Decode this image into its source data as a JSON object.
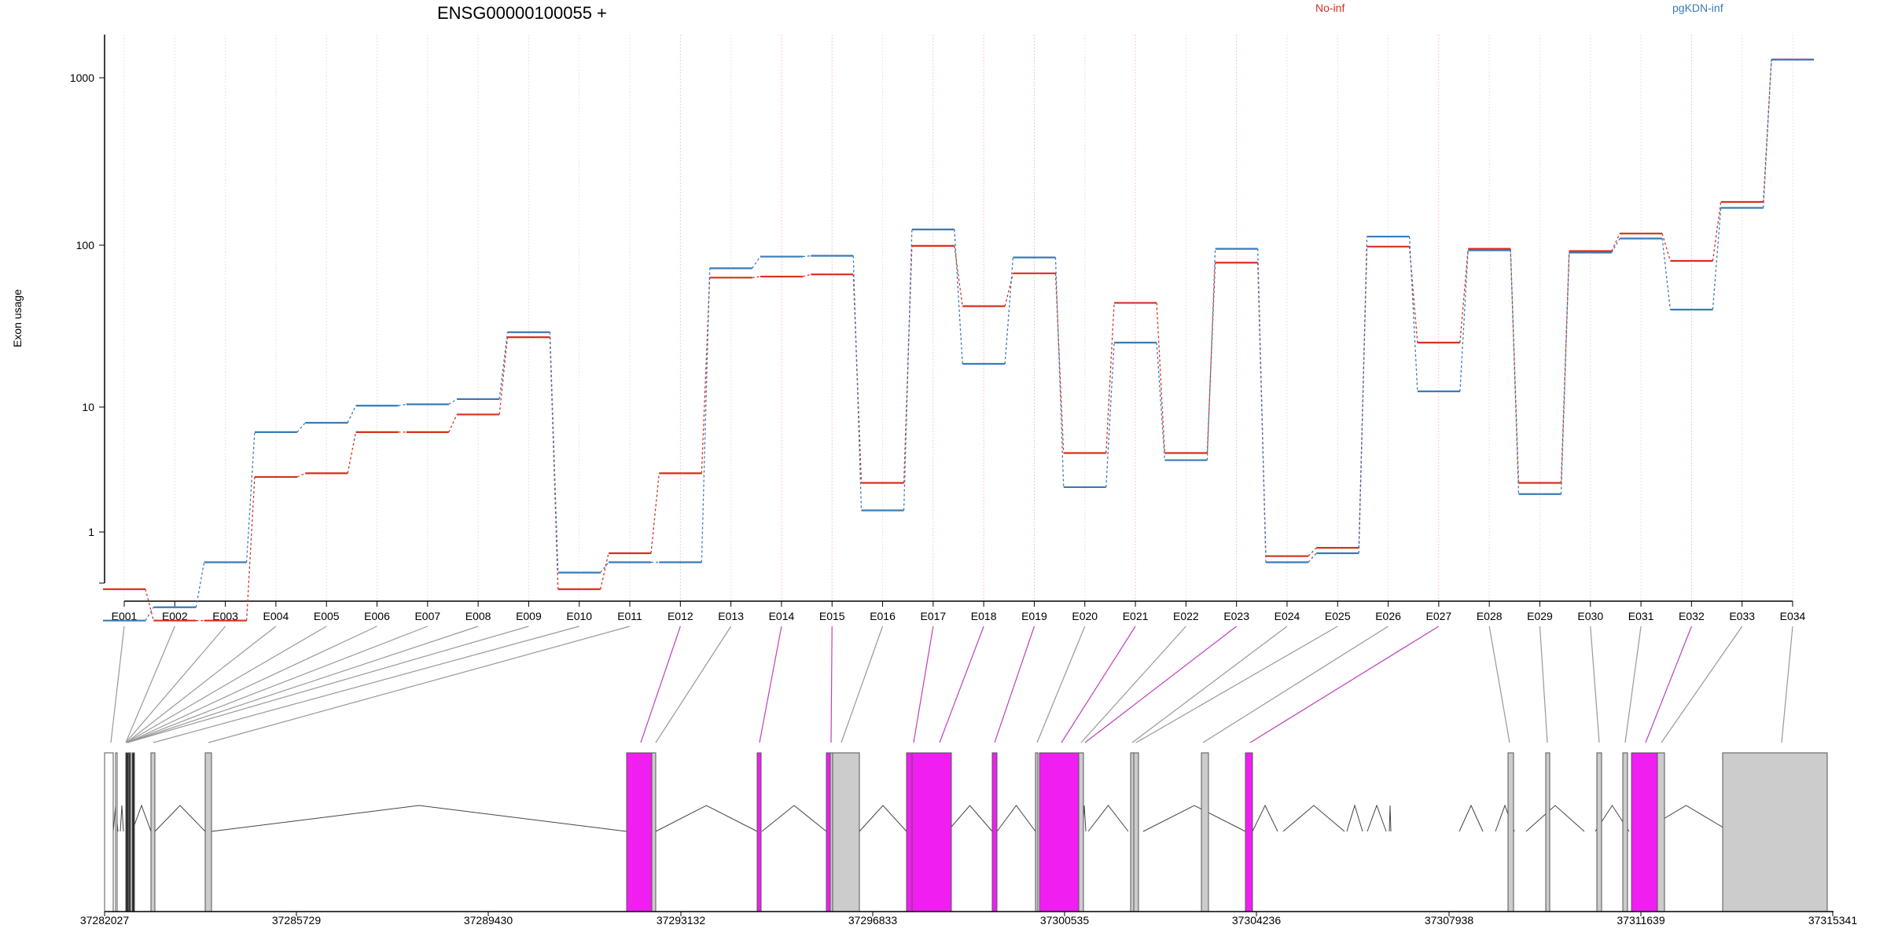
{
  "title": "ENSG00000100055 +",
  "ylabel": "Exon usage",
  "legend": [
    {
      "label": "No-inf",
      "color": "#d7301f"
    },
    {
      "label": "pgKDN-inf",
      "color": "#3a7ab8"
    }
  ],
  "y_ticks": [
    "1",
    "10",
    "100",
    "1000"
  ],
  "genomic_coords": [
    "37282027",
    "37285729",
    "37289430",
    "37293132",
    "37296833",
    "37300535",
    "37304236",
    "37307938",
    "37311639",
    "37315341"
  ],
  "colors": {
    "no_inf": "#d7301f",
    "pgkdn_inf": "#3a7ab8",
    "exon": "#cccccc",
    "exon_significant": "#f01ef0",
    "link": "#999999",
    "link_significant": "#c040c0"
  },
  "chart_data": {
    "type": "line",
    "title": "ENSG00000100055 +",
    "xlabel": "",
    "ylabel": "Exon usage",
    "y_scale": "log",
    "ylim": [
      0.4,
      1500
    ],
    "grid": "vertical dotted lines at each exon",
    "legend_position": "top",
    "categories": [
      "E001",
      "E002",
      "E003",
      "E004",
      "E005",
      "E006",
      "E007",
      "E008",
      "E009",
      "E010",
      "E011",
      "E012",
      "E013",
      "E014",
      "E015",
      "E016",
      "E017",
      "E018",
      "E019",
      "E020",
      "E021",
      "E022",
      "E023",
      "E024",
      "E025",
      "E026",
      "E027",
      "E028",
      "E029",
      "E030",
      "E031",
      "E032",
      "E033",
      "E034"
    ],
    "significant_exons": [
      "E012",
      "E014",
      "E015",
      "E017",
      "E018",
      "E019",
      "E021",
      "E023",
      "E027",
      "E032"
    ],
    "series": [
      {
        "name": "No-inf",
        "values": [
          0.75,
          0.48,
          0.48,
          3.7,
          3.9,
          7.0,
          7.0,
          9.0,
          27,
          0.75,
          1.25,
          3.9,
          63,
          64,
          66,
          3.4,
          99,
          42,
          67,
          5.2,
          44,
          5.2,
          78,
          1.2,
          1.35,
          98,
          25,
          95,
          3.4,
          92,
          118,
          80,
          185,
          1400
        ]
      },
      {
        "name": "pgKDN-inf",
        "values": [
          0.48,
          0.58,
          1.1,
          7.0,
          8.0,
          10.2,
          10.4,
          11.2,
          29,
          0.95,
          1.1,
          1.1,
          72,
          85,
          86,
          2.3,
          125,
          18.5,
          84,
          3.2,
          25,
          4.7,
          95,
          1.1,
          1.25,
          113,
          12.5,
          93,
          2.9,
          90,
          110,
          40,
          170,
          1400
        ]
      }
    ]
  }
}
